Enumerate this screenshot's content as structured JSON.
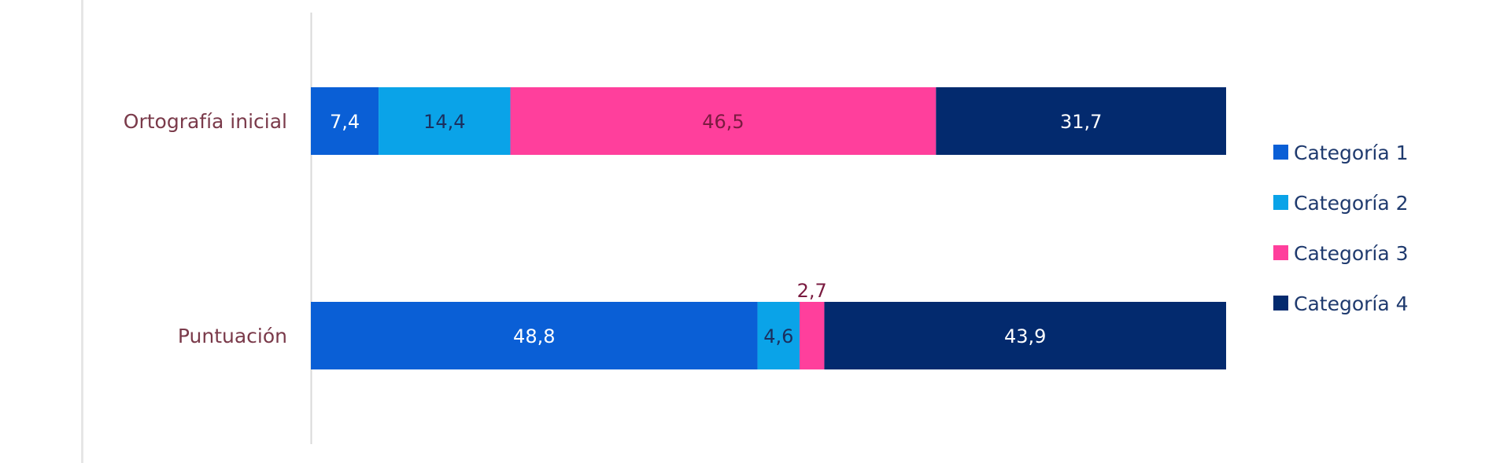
{
  "chart_data": {
    "type": "bar",
    "orientation": "horizontal",
    "stacked": true,
    "categories": [
      "Ortografía inicial",
      "Puntuación"
    ],
    "series": [
      {
        "name": "Categoría 1",
        "values": [
          7.4,
          48.8
        ],
        "labels": [
          "7,4",
          "48,8"
        ],
        "color": "#0a5fd6",
        "label_color": "#ffffff"
      },
      {
        "name": "Categoría 2",
        "values": [
          14.4,
          4.6
        ],
        "labels": [
          "14,4",
          "4,6"
        ],
        "color": "#0aa3e8",
        "label_color": "#1b2f5e"
      },
      {
        "name": "Categoría 3",
        "values": [
          46.5,
          2.7
        ],
        "labels": [
          "46,5",
          "2,7"
        ],
        "color": "#ff3f9c",
        "label_color": "#7a1b40"
      },
      {
        "name": "Categoría 4",
        "values": [
          31.7,
          43.9
        ],
        "labels": [
          "31,7",
          "43,9"
        ],
        "color": "#032a6e",
        "label_color": "#ffffff"
      }
    ],
    "xlim": [
      0,
      100
    ],
    "gridlines": false,
    "legend_position": "right"
  }
}
